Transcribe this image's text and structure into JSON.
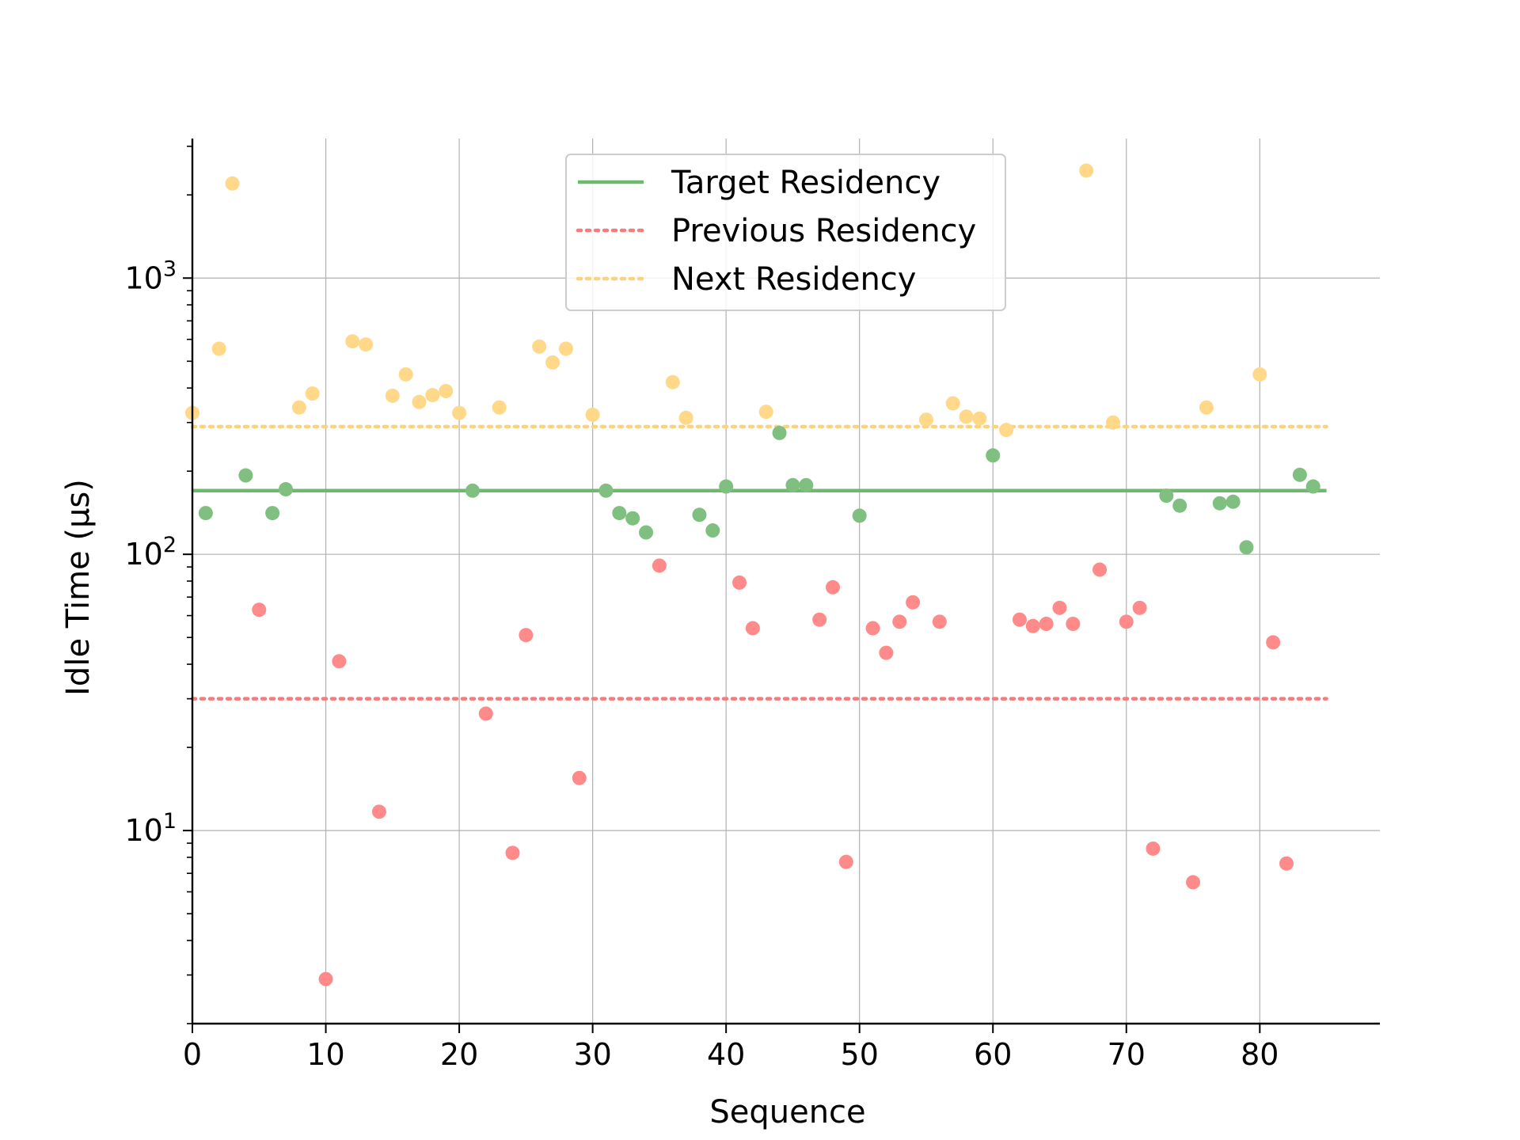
{
  "chart_data": {
    "type": "scatter",
    "title": "",
    "xlabel": "Sequence",
    "ylabel": "Idle Time (µs)",
    "xlim": [
      0,
      89
    ],
    "ylim": [
      2,
      3200
    ],
    "yscale": "log",
    "grid": true,
    "legend_position": "top-center",
    "x_ticks": [
      0,
      10,
      20,
      30,
      40,
      50,
      60,
      70,
      80
    ],
    "y_ticks": [
      {
        "value": 10,
        "base": "10",
        "exp": "1"
      },
      {
        "value": 100,
        "base": "10",
        "exp": "2"
      },
      {
        "value": 1000,
        "base": "10",
        "exp": "3"
      }
    ],
    "points": [
      {
        "x": 0,
        "y": 325,
        "cat": "next"
      },
      {
        "x": 1,
        "y": 141,
        "cat": "target"
      },
      {
        "x": 2,
        "y": 555,
        "cat": "next"
      },
      {
        "x": 3,
        "y": 2200,
        "cat": "next"
      },
      {
        "x": 4,
        "y": 193,
        "cat": "target"
      },
      {
        "x": 5,
        "y": 63,
        "cat": "previous"
      },
      {
        "x": 6,
        "y": 141,
        "cat": "target"
      },
      {
        "x": 7,
        "y": 172,
        "cat": "target"
      },
      {
        "x": 8,
        "y": 340,
        "cat": "next"
      },
      {
        "x": 9,
        "y": 382,
        "cat": "next"
      },
      {
        "x": 10,
        "y": 2.9,
        "cat": "previous"
      },
      {
        "x": 11,
        "y": 41,
        "cat": "previous"
      },
      {
        "x": 12,
        "y": 590,
        "cat": "next"
      },
      {
        "x": 13,
        "y": 575,
        "cat": "next"
      },
      {
        "x": 14,
        "y": 11.7,
        "cat": "previous"
      },
      {
        "x": 15,
        "y": 375,
        "cat": "next"
      },
      {
        "x": 16,
        "y": 448,
        "cat": "next"
      },
      {
        "x": 17,
        "y": 356,
        "cat": "next"
      },
      {
        "x": 18,
        "y": 377,
        "cat": "next"
      },
      {
        "x": 19,
        "y": 390,
        "cat": "next"
      },
      {
        "x": 20,
        "y": 325,
        "cat": "next"
      },
      {
        "x": 21,
        "y": 170,
        "cat": "target"
      },
      {
        "x": 22,
        "y": 26.5,
        "cat": "previous"
      },
      {
        "x": 23,
        "y": 340,
        "cat": "next"
      },
      {
        "x": 24,
        "y": 8.3,
        "cat": "previous"
      },
      {
        "x": 25,
        "y": 51,
        "cat": "previous"
      },
      {
        "x": 26,
        "y": 565,
        "cat": "next"
      },
      {
        "x": 27,
        "y": 495,
        "cat": "next"
      },
      {
        "x": 28,
        "y": 555,
        "cat": "next"
      },
      {
        "x": 29,
        "y": 15.5,
        "cat": "previous"
      },
      {
        "x": 30,
        "y": 320,
        "cat": "next"
      },
      {
        "x": 31,
        "y": 170,
        "cat": "target"
      },
      {
        "x": 32,
        "y": 141,
        "cat": "target"
      },
      {
        "x": 33,
        "y": 135,
        "cat": "target"
      },
      {
        "x": 34,
        "y": 120,
        "cat": "target"
      },
      {
        "x": 35,
        "y": 91,
        "cat": "previous"
      },
      {
        "x": 36,
        "y": 420,
        "cat": "next"
      },
      {
        "x": 37,
        "y": 312,
        "cat": "next"
      },
      {
        "x": 38,
        "y": 139,
        "cat": "target"
      },
      {
        "x": 39,
        "y": 122,
        "cat": "target"
      },
      {
        "x": 40,
        "y": 176,
        "cat": "target"
      },
      {
        "x": 41,
        "y": 79,
        "cat": "previous"
      },
      {
        "x": 42,
        "y": 54,
        "cat": "previous"
      },
      {
        "x": 43,
        "y": 328,
        "cat": "next"
      },
      {
        "x": 44,
        "y": 275,
        "cat": "target"
      },
      {
        "x": 45,
        "y": 178,
        "cat": "target"
      },
      {
        "x": 46,
        "y": 178,
        "cat": "target"
      },
      {
        "x": 47,
        "y": 58,
        "cat": "previous"
      },
      {
        "x": 48,
        "y": 76,
        "cat": "previous"
      },
      {
        "x": 49,
        "y": 7.7,
        "cat": "previous"
      },
      {
        "x": 50,
        "y": 138,
        "cat": "target"
      },
      {
        "x": 51,
        "y": 54,
        "cat": "previous"
      },
      {
        "x": 52,
        "y": 44,
        "cat": "previous"
      },
      {
        "x": 53,
        "y": 57,
        "cat": "previous"
      },
      {
        "x": 54,
        "y": 67,
        "cat": "previous"
      },
      {
        "x": 55,
        "y": 307,
        "cat": "next"
      },
      {
        "x": 56,
        "y": 57,
        "cat": "previous"
      },
      {
        "x": 57,
        "y": 352,
        "cat": "next"
      },
      {
        "x": 58,
        "y": 315,
        "cat": "next"
      },
      {
        "x": 59,
        "y": 310,
        "cat": "next"
      },
      {
        "x": 60,
        "y": 228,
        "cat": "target"
      },
      {
        "x": 61,
        "y": 282,
        "cat": "next"
      },
      {
        "x": 62,
        "y": 58,
        "cat": "previous"
      },
      {
        "x": 63,
        "y": 55,
        "cat": "previous"
      },
      {
        "x": 64,
        "y": 56,
        "cat": "previous"
      },
      {
        "x": 65,
        "y": 64,
        "cat": "previous"
      },
      {
        "x": 66,
        "y": 56,
        "cat": "previous"
      },
      {
        "x": 67,
        "y": 2450,
        "cat": "next"
      },
      {
        "x": 68,
        "y": 88,
        "cat": "previous"
      },
      {
        "x": 69,
        "y": 300,
        "cat": "next"
      },
      {
        "x": 70,
        "y": 57,
        "cat": "previous"
      },
      {
        "x": 71,
        "y": 64,
        "cat": "previous"
      },
      {
        "x": 72,
        "y": 8.6,
        "cat": "previous"
      },
      {
        "x": 73,
        "y": 163,
        "cat": "target"
      },
      {
        "x": 74,
        "y": 150,
        "cat": "target"
      },
      {
        "x": 75,
        "y": 6.5,
        "cat": "previous"
      },
      {
        "x": 76,
        "y": 340,
        "cat": "next"
      },
      {
        "x": 77,
        "y": 153,
        "cat": "target"
      },
      {
        "x": 78,
        "y": 155,
        "cat": "target"
      },
      {
        "x": 79,
        "y": 106,
        "cat": "target"
      },
      {
        "x": 80,
        "y": 448,
        "cat": "next"
      },
      {
        "x": 81,
        "y": 48,
        "cat": "previous"
      },
      {
        "x": 82,
        "y": 7.6,
        "cat": "previous"
      },
      {
        "x": 83,
        "y": 194,
        "cat": "target"
      },
      {
        "x": 84,
        "y": 176,
        "cat": "target"
      }
    ],
    "reference_lines": [
      {
        "name": "Target Residency",
        "y": 170,
        "x_range": [
          0,
          85
        ],
        "style": "solid",
        "color": "#6db96d"
      },
      {
        "name": "Previous Residency",
        "y": 30,
        "x_range": [
          0,
          85
        ],
        "style": "dotted",
        "color": "#f47c7c"
      },
      {
        "name": "Next Residency",
        "y": 290,
        "x_range": [
          0,
          85
        ],
        "style": "dotted",
        "color": "#fbd27d"
      }
    ],
    "colors": {
      "target": "#7fbf7f",
      "previous": "#ff8a8a",
      "next": "#ffd88a"
    }
  }
}
